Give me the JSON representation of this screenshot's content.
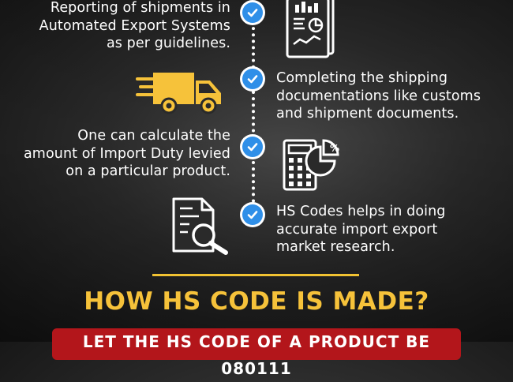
{
  "steps": [
    {
      "text": "Reporting of shipments in\nAutomated Export Systems\nas per guidelines."
    },
    {
      "text": "Completing the shipping\ndocumentations like customs\nand shipment documents."
    },
    {
      "text": "One can calculate the\namount of Import Duty levied\non a particular product."
    },
    {
      "text": "HS Codes helps in doing\naccurate import export\nmarket research."
    }
  ],
  "icons": [
    "report-chart-icon",
    "delivery-truck-icon",
    "calculator-chart-icon",
    "document-search-icon"
  ],
  "heading": "HOW HS CODE IS MADE?",
  "banner": "LET THE HS CODE OF A PRODUCT BE 080111",
  "colors": {
    "accent_yellow": "#f6c23a",
    "check_blue": "#2f8fe8",
    "banner_red": "#b3161b"
  }
}
